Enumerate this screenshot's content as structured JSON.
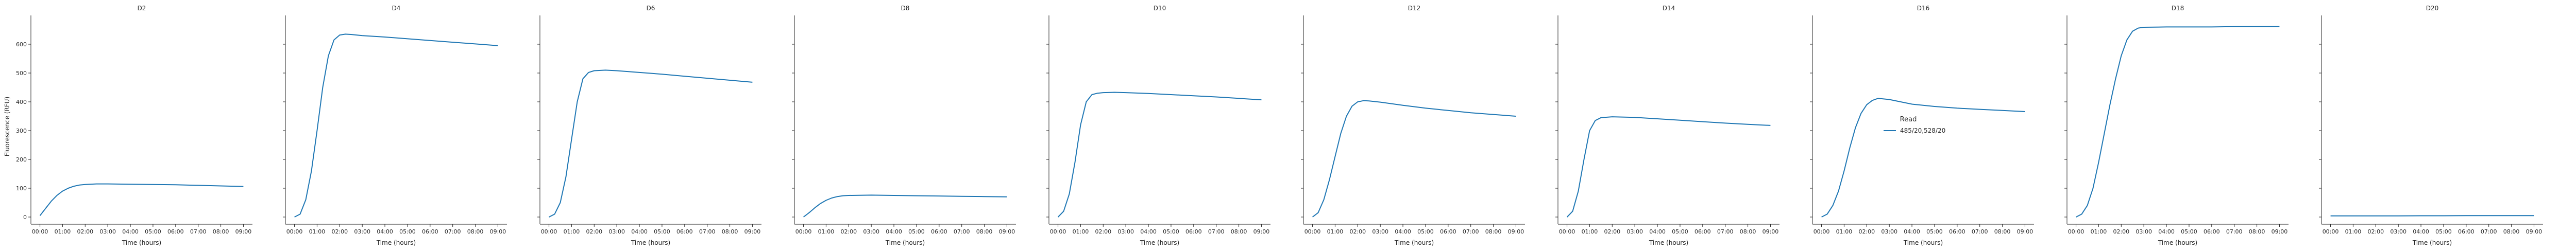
{
  "figure": {
    "legend_title": "Read",
    "legend_entries": [
      "485/20,528/20"
    ],
    "series_color": "#1f77b4",
    "legend_placement": "right"
  },
  "chart_data": [
    {
      "type": "line",
      "title": "D2",
      "xlabel": "Time (hours)",
      "ylabel": "Fluorescence (RFU)",
      "series": [
        {
          "name": "485/20,528/20",
          "points": [
            [
              0,
              5
            ],
            [
              0.25,
              30
            ],
            [
              0.5,
              55
            ],
            [
              0.75,
              75
            ],
            [
              1,
              90
            ],
            [
              1.25,
              100
            ],
            [
              1.5,
              107
            ],
            [
              1.75,
              111
            ],
            [
              2,
              113
            ],
            [
              2.5,
              115
            ],
            [
              3,
              115
            ],
            [
              4,
              114
            ],
            [
              5,
              113
            ],
            [
              6,
              112
            ],
            [
              7,
              110
            ],
            [
              8,
              108
            ],
            [
              9,
              106
            ]
          ]
        }
      ]
    },
    {
      "type": "line",
      "title": "D4",
      "xlabel": "Time (hours)",
      "ylabel": "",
      "series": [
        {
          "name": "485/20,528/20",
          "points": [
            [
              0,
              0
            ],
            [
              0.25,
              10
            ],
            [
              0.5,
              60
            ],
            [
              0.75,
              160
            ],
            [
              1,
              300
            ],
            [
              1.25,
              450
            ],
            [
              1.5,
              560
            ],
            [
              1.75,
              615
            ],
            [
              2,
              632
            ],
            [
              2.25,
              635
            ],
            [
              2.5,
              634
            ],
            [
              3,
              630
            ],
            [
              4,
              625
            ],
            [
              5,
              619
            ],
            [
              6,
              613
            ],
            [
              7,
              607
            ],
            [
              8,
              601
            ],
            [
              9,
              595
            ]
          ]
        }
      ]
    },
    {
      "type": "line",
      "title": "D6",
      "xlabel": "Time (hours)",
      "ylabel": "",
      "series": [
        {
          "name": "485/20,528/20",
          "points": [
            [
              0,
              0
            ],
            [
              0.25,
              10
            ],
            [
              0.5,
              50
            ],
            [
              0.75,
              140
            ],
            [
              1,
              270
            ],
            [
              1.25,
              400
            ],
            [
              1.5,
              480
            ],
            [
              1.75,
              502
            ],
            [
              2,
              508
            ],
            [
              2.5,
              510
            ],
            [
              3,
              508
            ],
            [
              4,
              502
            ],
            [
              5,
              496
            ],
            [
              6,
              489
            ],
            [
              7,
              482
            ],
            [
              8,
              475
            ],
            [
              9,
              468
            ]
          ]
        }
      ]
    },
    {
      "type": "line",
      "title": "D8",
      "xlabel": "Time (hours)",
      "ylabel": "",
      "series": [
        {
          "name": "485/20,528/20",
          "points": [
            [
              0,
              0
            ],
            [
              0.25,
              15
            ],
            [
              0.5,
              32
            ],
            [
              0.75,
              47
            ],
            [
              1,
              58
            ],
            [
              1.25,
              66
            ],
            [
              1.5,
              71
            ],
            [
              1.75,
              74
            ],
            [
              2,
              75
            ],
            [
              3,
              76
            ],
            [
              4,
              75
            ],
            [
              5,
              74
            ],
            [
              6,
              73
            ],
            [
              7,
              72
            ],
            [
              8,
              71
            ],
            [
              9,
              70
            ]
          ]
        }
      ]
    },
    {
      "type": "line",
      "title": "D10",
      "xlabel": "Time (hours)",
      "ylabel": "",
      "series": [
        {
          "name": "485/20,528/20",
          "points": [
            [
              0,
              0
            ],
            [
              0.25,
              20
            ],
            [
              0.5,
              80
            ],
            [
              0.75,
              190
            ],
            [
              1,
              320
            ],
            [
              1.25,
              400
            ],
            [
              1.5,
              425
            ],
            [
              1.75,
              430
            ],
            [
              2,
              432
            ],
            [
              2.5,
              433
            ],
            [
              3,
              432
            ],
            [
              4,
              429
            ],
            [
              5,
              425
            ],
            [
              6,
              421
            ],
            [
              7,
              417
            ],
            [
              8,
              412
            ],
            [
              9,
              407
            ]
          ]
        }
      ]
    },
    {
      "type": "line",
      "title": "D12",
      "xlabel": "Time (hours)",
      "ylabel": "",
      "series": [
        {
          "name": "485/20,528/20",
          "points": [
            [
              0,
              0
            ],
            [
              0.25,
              15
            ],
            [
              0.5,
              60
            ],
            [
              0.75,
              130
            ],
            [
              1,
              210
            ],
            [
              1.25,
              290
            ],
            [
              1.5,
              350
            ],
            [
              1.75,
              385
            ],
            [
              2,
              400
            ],
            [
              2.25,
              404
            ],
            [
              2.5,
              403
            ],
            [
              3,
              399
            ],
            [
              4,
              388
            ],
            [
              5,
              378
            ],
            [
              6,
              370
            ],
            [
              7,
              362
            ],
            [
              8,
              356
            ],
            [
              9,
              350
            ]
          ]
        }
      ]
    },
    {
      "type": "line",
      "title": "D14",
      "xlabel": "Time (hours)",
      "ylabel": "",
      "series": [
        {
          "name": "485/20,528/20",
          "points": [
            [
              0,
              0
            ],
            [
              0.25,
              20
            ],
            [
              0.5,
              90
            ],
            [
              0.75,
              200
            ],
            [
              1,
              300
            ],
            [
              1.25,
              335
            ],
            [
              1.5,
              345
            ],
            [
              2,
              348
            ],
            [
              3,
              346
            ],
            [
              4,
              341
            ],
            [
              5,
              336
            ],
            [
              6,
              331
            ],
            [
              7,
              326
            ],
            [
              8,
              322
            ],
            [
              9,
              318
            ]
          ]
        }
      ]
    },
    {
      "type": "line",
      "title": "D16",
      "xlabel": "Time (hours)",
      "ylabel": "",
      "series": [
        {
          "name": "485/20,528/20",
          "points": [
            [
              0,
              0
            ],
            [
              0.25,
              10
            ],
            [
              0.5,
              40
            ],
            [
              0.75,
              90
            ],
            [
              1,
              160
            ],
            [
              1.25,
              240
            ],
            [
              1.5,
              310
            ],
            [
              1.75,
              360
            ],
            [
              2,
              390
            ],
            [
              2.25,
              405
            ],
            [
              2.5,
              412
            ],
            [
              3,
              408
            ],
            [
              3.5,
              400
            ],
            [
              4,
              392
            ],
            [
              5,
              384
            ],
            [
              6,
              378
            ],
            [
              7,
              374
            ],
            [
              8,
              370
            ],
            [
              9,
              366
            ]
          ]
        }
      ]
    },
    {
      "type": "line",
      "title": "D18",
      "xlabel": "Time (hours)",
      "ylabel": "",
      "series": [
        {
          "name": "485/20,528/20",
          "points": [
            [
              0,
              0
            ],
            [
              0.25,
              10
            ],
            [
              0.5,
              40
            ],
            [
              0.75,
              100
            ],
            [
              1,
              190
            ],
            [
              1.25,
              290
            ],
            [
              1.5,
              390
            ],
            [
              1.75,
              480
            ],
            [
              2,
              560
            ],
            [
              2.25,
              615
            ],
            [
              2.5,
              645
            ],
            [
              2.75,
              656
            ],
            [
              3,
              659
            ],
            [
              4,
              660
            ],
            [
              5,
              660
            ],
            [
              6,
              660
            ],
            [
              7,
              661
            ],
            [
              8,
              661
            ],
            [
              9,
              661
            ]
          ]
        }
      ]
    },
    {
      "type": "line",
      "title": "D20",
      "xlabel": "Time (hours)",
      "ylabel": "",
      "series": [
        {
          "name": "485/20,528/20",
          "points": [
            [
              0,
              4
            ],
            [
              1,
              4
            ],
            [
              2,
              4
            ],
            [
              3,
              4
            ],
            [
              4,
              4.5
            ],
            [
              5,
              4.5
            ],
            [
              6,
              5
            ],
            [
              7,
              5
            ],
            [
              8,
              5
            ],
            [
              9,
              5
            ]
          ]
        }
      ]
    }
  ],
  "axes": {
    "x_ticks": [
      "00:00",
      "01:00",
      "02:00",
      "03:00",
      "04:00",
      "05:00",
      "06:00",
      "07:00",
      "08:00",
      "09:00"
    ],
    "x_tick_values": [
      0,
      1,
      2,
      3,
      4,
      5,
      6,
      7,
      8,
      9
    ],
    "xlim": [
      -0.4,
      9.4
    ],
    "y_ticks": [
      "0",
      "100",
      "200",
      "300",
      "400",
      "500",
      "600"
    ],
    "y_tick_values": [
      0,
      100,
      200,
      300,
      400,
      500,
      600
    ],
    "ylim": [
      -25,
      700
    ],
    "grid": false
  }
}
